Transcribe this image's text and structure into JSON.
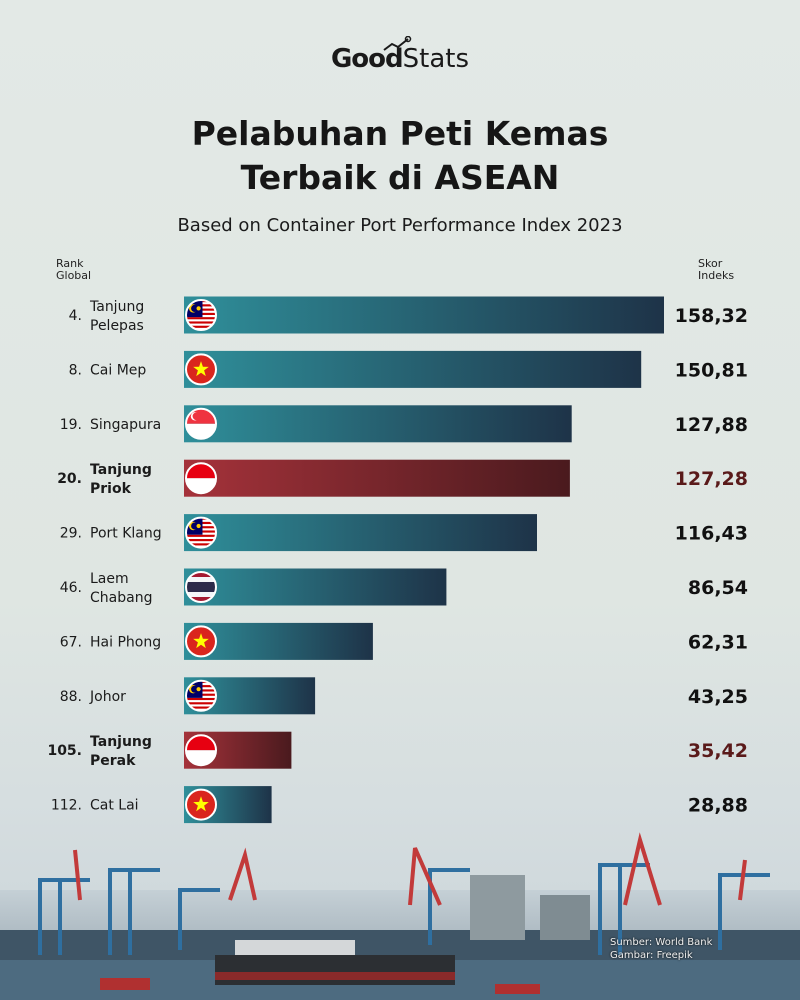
{
  "brand": {
    "good": "Good",
    "stats": "Stats"
  },
  "title_line1": "Pelabuhan Peti Kemas",
  "title_line2": "Terbaik di ASEAN",
  "subtitle": "Based on Container Port Performance Index 2023",
  "header_left_line1": "Rank",
  "header_left_line2": "Global",
  "header_right_line1": "Skor",
  "header_right_line2": "Indeks",
  "footer_line1": "Sumber: World Bank",
  "footer_line2": "Gambar: Freepik",
  "colors": {
    "normal_start": "#2f8f9a",
    "normal_end": "#1e3348",
    "highlight_start": "#a5323a",
    "highlight_end": "#4a1a1e",
    "highlight_text": "#5a1a1a"
  },
  "chart_data": {
    "type": "bar",
    "orientation": "horizontal",
    "xlim": [
      0,
      158.32
    ],
    "categories": [
      "Tanjung Pelepas",
      "Cai Mep",
      "Singapura",
      "Tanjung Priok",
      "Port Klang",
      "Laem Chabang",
      "Hai Phong",
      "Johor",
      "Tanjung Perak",
      "Cat Lai"
    ],
    "ranks": [
      "4.",
      "8.",
      "19.",
      "20.",
      "29.",
      "46.",
      "67.",
      "88.",
      "105.",
      "112."
    ],
    "label_lines": [
      [
        "Tanjung",
        "Pelepas"
      ],
      [
        "Cai Mep"
      ],
      [
        "Singapura"
      ],
      [
        "Tanjung",
        "Priok"
      ],
      [
        "Port Klang"
      ],
      [
        "Laem",
        "Chabang"
      ],
      [
        "Hai Phong"
      ],
      [
        "Johor"
      ],
      [
        "Tanjung",
        "Perak"
      ],
      [
        "Cat Lai"
      ]
    ],
    "values": [
      158.32,
      150.81,
      127.88,
      127.28,
      116.43,
      86.54,
      62.31,
      43.25,
      35.42,
      28.88
    ],
    "value_labels": [
      "158,32",
      "150,81",
      "127,88",
      "127,28",
      "116,43",
      "86,54",
      "62,31",
      "43,25",
      "35,42",
      "28,88"
    ],
    "flags": [
      "malaysia-flag-icon",
      "vietnam-flag-icon",
      "singapore-flag-icon",
      "indonesia-flag-icon",
      "malaysia-flag-icon",
      "thailand-flag-icon",
      "vietnam-flag-icon",
      "malaysia-flag-icon",
      "indonesia-flag-icon",
      "vietnam-flag-icon"
    ],
    "highlight": [
      false,
      false,
      false,
      true,
      false,
      false,
      false,
      false,
      true,
      false
    ]
  }
}
